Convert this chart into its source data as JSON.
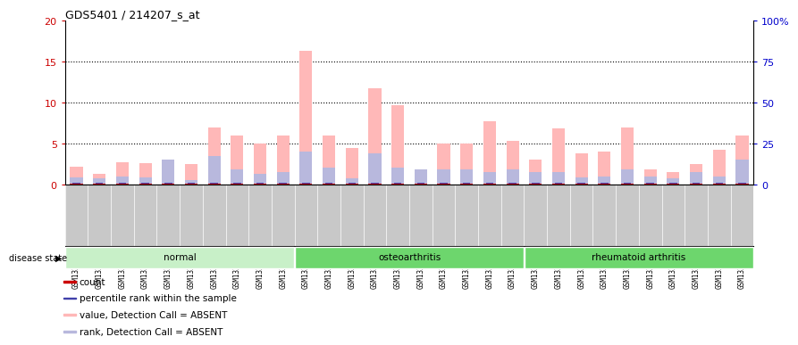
{
  "title": "GDS5401 / 214207_s_at",
  "samples": [
    "GSM1332201",
    "GSM1332202",
    "GSM1332203",
    "GSM1332204",
    "GSM1332205",
    "GSM1332206",
    "GSM1332207",
    "GSM1332208",
    "GSM1332209",
    "GSM1332210",
    "GSM1332211",
    "GSM1332212",
    "GSM1332213",
    "GSM1332214",
    "GSM1332215",
    "GSM1332216",
    "GSM1332217",
    "GSM1332218",
    "GSM1332219",
    "GSM1332220",
    "GSM1332221",
    "GSM1332222",
    "GSM1332223",
    "GSM1332224",
    "GSM1332225",
    "GSM1332226",
    "GSM1332227",
    "GSM1332228",
    "GSM1332229",
    "GSM1332230"
  ],
  "count_values": [
    2.2,
    1.3,
    2.7,
    2.6,
    2.6,
    2.5,
    7.0,
    6.0,
    5.0,
    6.0,
    16.3,
    6.0,
    4.5,
    11.8,
    9.7,
    1.5,
    5.0,
    5.0,
    7.7,
    5.3,
    3.0,
    6.8,
    3.8,
    4.0,
    7.0,
    1.8,
    1.5,
    2.5,
    4.2,
    6.0
  ],
  "rank_values": [
    0.8,
    0.7,
    1.0,
    0.8,
    3.0,
    0.5,
    3.5,
    1.8,
    1.3,
    1.5,
    4.0,
    2.0,
    0.7,
    3.8,
    2.0,
    1.8,
    1.8,
    1.8,
    1.5,
    1.8,
    1.5,
    1.5,
    0.8,
    1.0,
    1.8,
    1.0,
    0.7,
    1.5,
    1.0,
    3.0
  ],
  "groups": [
    {
      "label": "normal",
      "start": 0,
      "end": 10,
      "color": "#c8f0c8"
    },
    {
      "label": "osteoarthritis",
      "start": 10,
      "end": 20,
      "color": "#6dd66d"
    },
    {
      "label": "rheumatoid arthritis",
      "start": 20,
      "end": 30,
      "color": "#6dd66d"
    }
  ],
  "ylim_left": [
    0,
    20
  ],
  "ylim_right": [
    0,
    100
  ],
  "yticks_left": [
    0,
    5,
    10,
    15,
    20
  ],
  "yticks_right": [
    0,
    25,
    50,
    75,
    100
  ],
  "ytick_labels_left": [
    "0",
    "5",
    "10",
    "15",
    "20"
  ],
  "ytick_labels_right": [
    "0",
    "25",
    "50",
    "75",
    "100%"
  ],
  "color_count": "#cc0000",
  "color_rank": "#4040aa",
  "color_absent_val": "#ffb8b8",
  "color_absent_rank": "#b8b8dd",
  "bar_width": 0.55,
  "legend_items": [
    {
      "label": "count",
      "color": "#cc0000"
    },
    {
      "label": "percentile rank within the sample",
      "color": "#4040aa"
    },
    {
      "label": "value, Detection Call = ABSENT",
      "color": "#ffb8b8"
    },
    {
      "label": "rank, Detection Call = ABSENT",
      "color": "#b8b8dd"
    }
  ],
  "disease_state_label": "disease state",
  "background_color": "#ffffff",
  "plot_bg_color": "#ffffff",
  "axis_label_color_left": "#cc0000",
  "axis_label_color_right": "#0000cc",
  "xtick_bg_color": "#c8c8c8",
  "grid_yticks": [
    5,
    10,
    15
  ]
}
